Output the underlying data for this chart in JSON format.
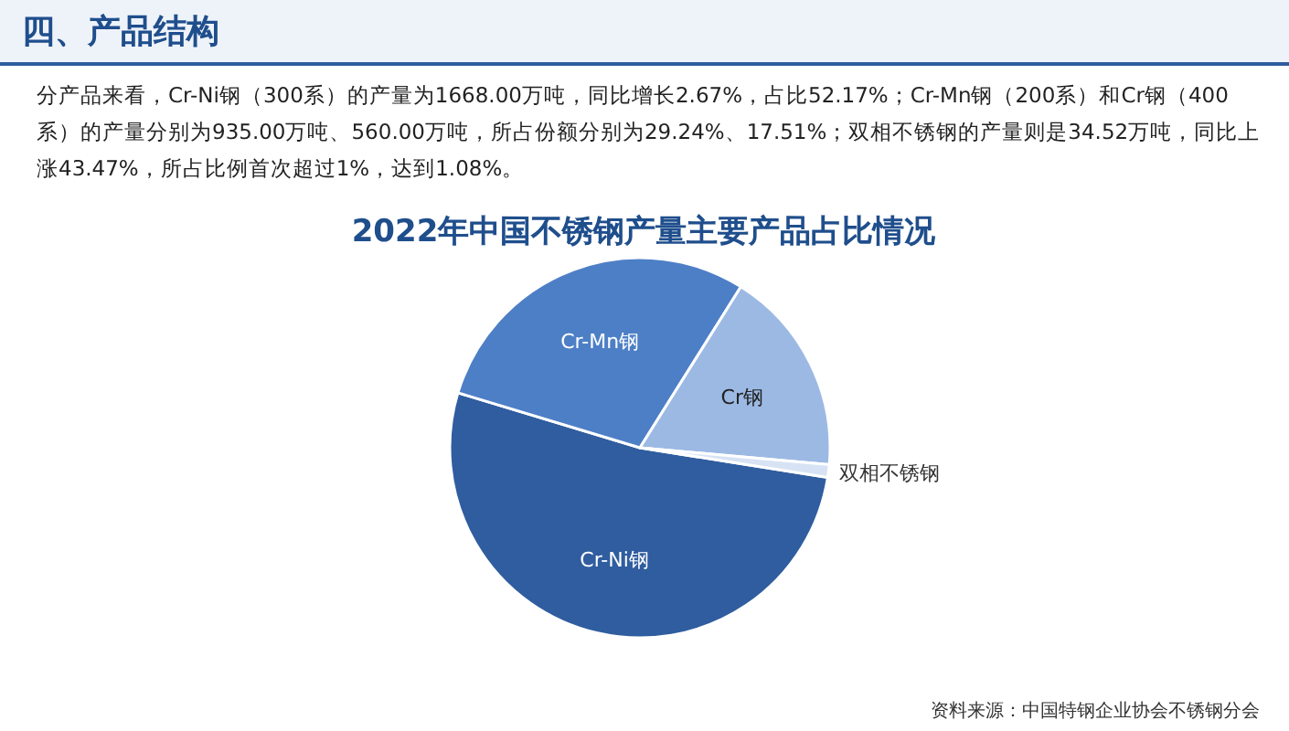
{
  "chart_data": {
    "type": "pie",
    "title": "2022年中国不锈钢产量主要产品占比情况",
    "categories": [
      "Cr-Ni钢",
      "Cr-Mn钢",
      "Cr钢",
      "双相不锈钢"
    ],
    "values": [
      52.17,
      29.24,
      17.51,
      1.08
    ],
    "colors": [
      "#2f5d9f",
      "#4d7fc6",
      "#9cb9e4",
      "#d7e3f4"
    ],
    "annotations": [
      "四、产品结构",
      "分产品来看，Cr-Ni钢（300系）的产量为1668.00万吨，同比增长2.67%，占比52.17%；Cr-Mn钢（200系）和Cr钢（400系）的产量分别为935.00万吨、560.00万吨，所占份额分别为29.24%、17.51%；双相不锈钢的产量则是34.52万吨，同比上涨43.47%，所占比例首次超过1%，达到1.08%。",
      "资料来源：中国特钢企业协会不锈钢分会"
    ]
  }
}
